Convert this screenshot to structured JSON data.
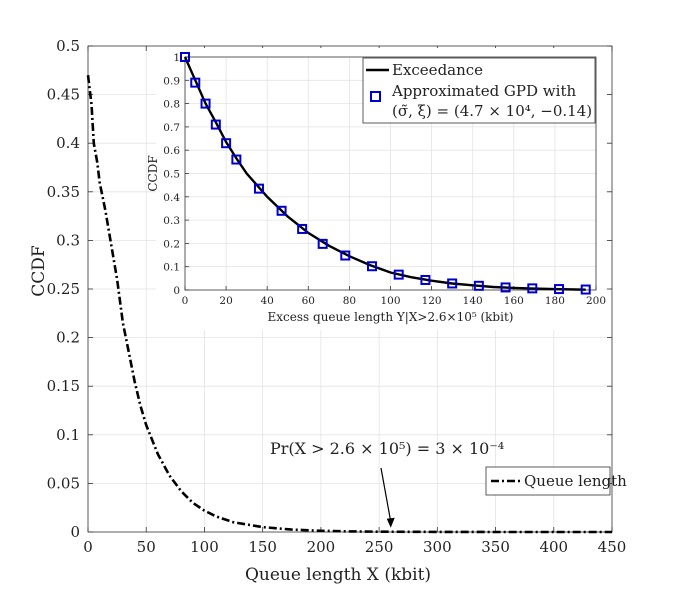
{
  "chart_data": [
    {
      "type": "line",
      "xlabel": "Queue length X (kbit)",
      "ylabel": "CCDF",
      "xlim": [
        0,
        450
      ],
      "ylim": [
        0,
        0.5
      ],
      "xticks": [
        0,
        50,
        100,
        150,
        200,
        250,
        300,
        350,
        400,
        450
      ],
      "yticks": [
        0,
        0.05,
        0.1,
        0.15,
        0.2,
        0.25,
        0.3,
        0.35,
        0.4,
        0.45,
        0.5
      ],
      "grid": true,
      "legend_position": "right",
      "series": [
        {
          "name": "Queue length",
          "style": "dash-dot",
          "color": "#000000",
          "x": [
            0,
            3,
            5,
            8,
            10,
            15,
            20,
            25,
            30,
            35,
            40,
            45,
            50,
            60,
            70,
            80,
            90,
            100,
            110,
            125,
            150,
            175,
            200,
            225,
            250,
            300,
            350,
            400,
            450
          ],
          "y": [
            0.47,
            0.44,
            0.4,
            0.38,
            0.36,
            0.33,
            0.295,
            0.26,
            0.215,
            0.185,
            0.155,
            0.13,
            0.11,
            0.08,
            0.058,
            0.042,
            0.03,
            0.022,
            0.016,
            0.01,
            0.005,
            0.0025,
            0.0012,
            0.0006,
            0.0003,
            0.0001,
            3e-05,
            1e-05,
            0.0
          ]
        }
      ],
      "annotation": {
        "text": "Pr(X > 2.6 × 10⁵) = 3 × 10⁻⁴",
        "arrow_to": [
          260,
          0.0003
        ]
      }
    },
    {
      "type": "line",
      "xlabel": "Excess queue length Y|X>2.6×10⁵ (kbit)",
      "ylabel": "CCDF",
      "xlim": [
        0,
        200
      ],
      "ylim": [
        0,
        1
      ],
      "xticks": [
        0,
        20,
        40,
        60,
        80,
        100,
        120,
        140,
        160,
        180,
        200
      ],
      "yticks": [
        0,
        0.1,
        0.2,
        0.3,
        0.4,
        0.5,
        0.6,
        0.7,
        0.8,
        0.9,
        1
      ],
      "grid": true,
      "legend_position": "top-right",
      "series": [
        {
          "name": "Exceedance",
          "style": "solid",
          "color": "#000000",
          "x": [
            0,
            5,
            10,
            15,
            20,
            25,
            30,
            40,
            50,
            60,
            70,
            80,
            90,
            100,
            110,
            120,
            130,
            140,
            150,
            160,
            170,
            180,
            190,
            195
          ],
          "y": [
            1.0,
            0.9,
            0.8,
            0.72,
            0.635,
            0.565,
            0.5,
            0.4,
            0.315,
            0.245,
            0.19,
            0.145,
            0.107,
            0.075,
            0.055,
            0.04,
            0.028,
            0.02,
            0.013,
            0.009,
            0.006,
            0.004,
            0.002,
            0.0015
          ]
        },
        {
          "name": "Approximated GPD with (σ̃, ξ) = (4.7 × 10⁴, −0.14)",
          "name_line1": "Approximated GPD with",
          "name_line2": "(σ̃, ξ) = (4.7 × 10⁴, −0.14)",
          "style": "square-markers",
          "color": "#0000cc",
          "x": [
            0,
            5,
            10,
            15,
            20,
            25,
            36,
            47,
            57,
            67,
            78,
            91,
            104,
            117,
            130,
            143,
            156,
            169,
            182,
            195
          ],
          "y": [
            1.0,
            0.89,
            0.8,
            0.71,
            0.63,
            0.56,
            0.435,
            0.34,
            0.262,
            0.198,
            0.148,
            0.102,
            0.066,
            0.043,
            0.028,
            0.018,
            0.011,
            0.007,
            0.004,
            0.002
          ]
        }
      ]
    }
  ]
}
